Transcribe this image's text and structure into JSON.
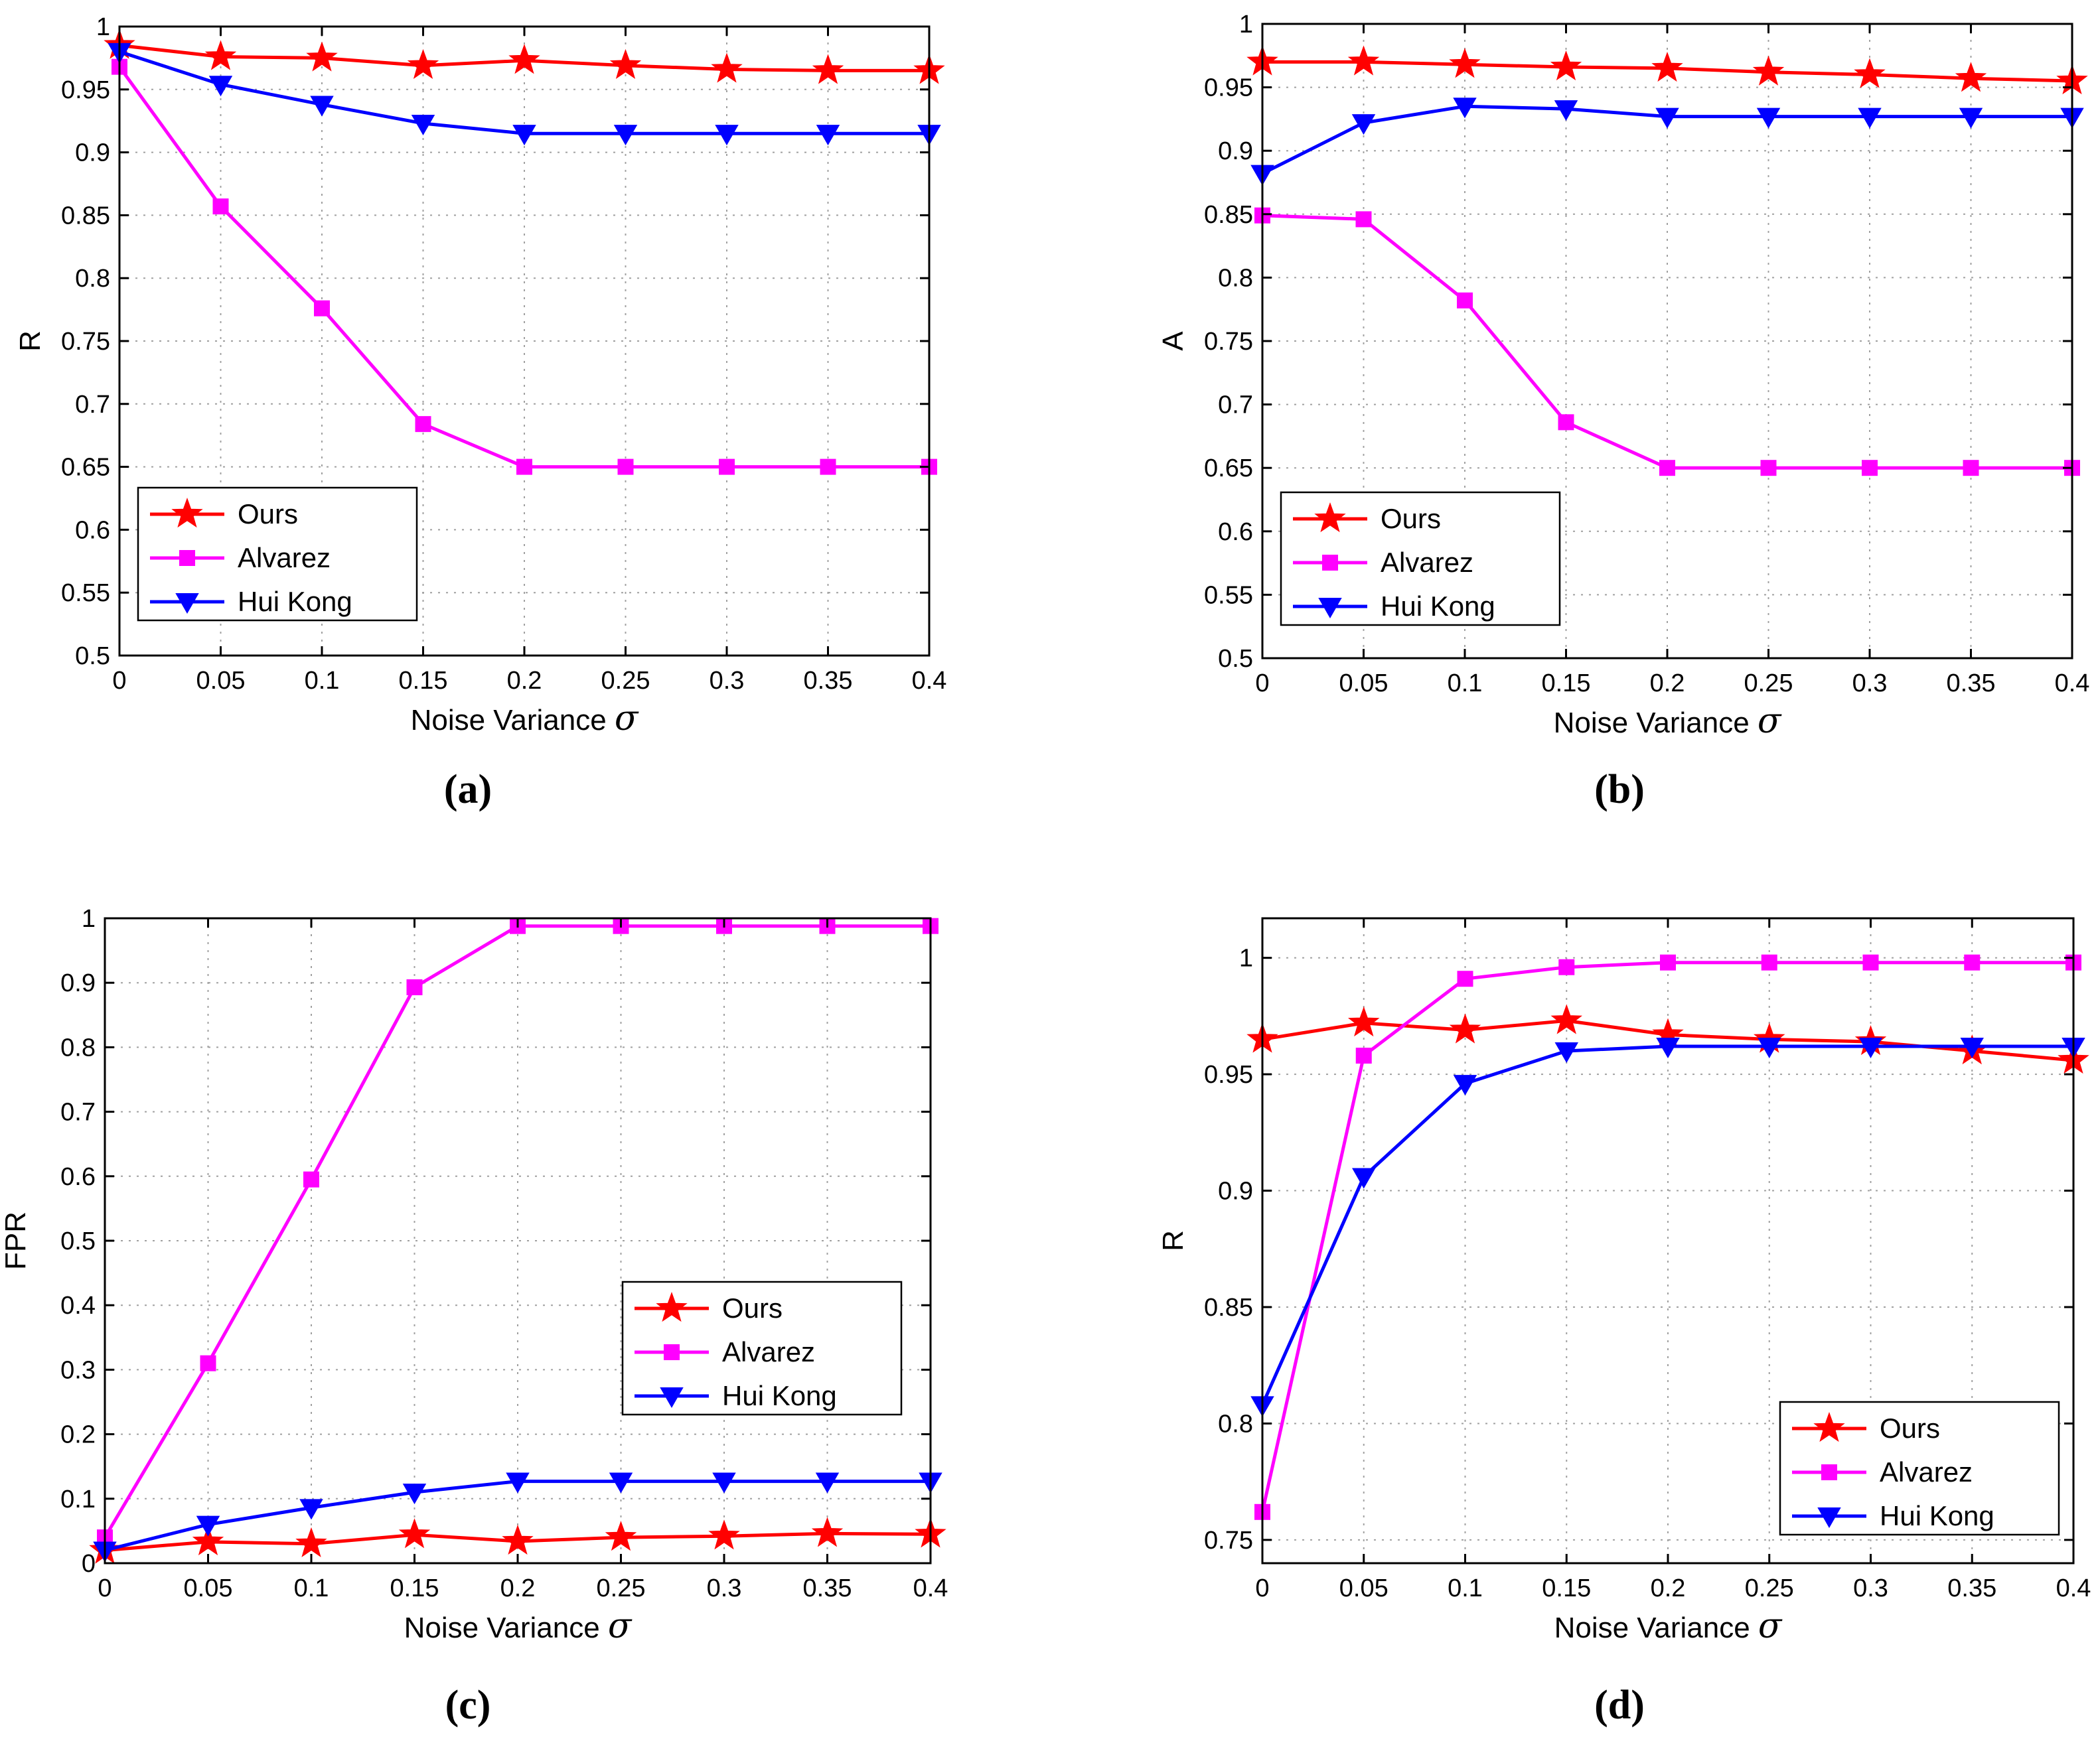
{
  "colors": {
    "Ours": "#ff0000",
    "Alvarez": "#ff00ff",
    "Hui Kong": "#0000ff"
  },
  "chart_data": [
    {
      "type": "line",
      "caption": "(a)",
      "xlabel": "Noise Variance",
      "xlabel_symbol": "σ",
      "ylabel": "R",
      "xlim": [
        0,
        0.4
      ],
      "ylim": [
        0.5,
        1
      ],
      "xticks": [
        0,
        0.05,
        0.1,
        0.15,
        0.2,
        0.25,
        0.3,
        0.35,
        0.4
      ],
      "yticks": [
        0.5,
        0.55,
        0.6,
        0.65,
        0.7,
        0.75,
        0.8,
        0.85,
        0.9,
        0.95,
        1
      ],
      "grid": true,
      "legend_position": "bottom-left",
      "x": [
        0,
        0.05,
        0.1,
        0.15,
        0.2,
        0.25,
        0.3,
        0.35,
        0.4
      ],
      "series": [
        {
          "name": "Ours",
          "marker": "star",
          "values": [
            0.985,
            0.976,
            0.975,
            0.969,
            0.973,
            0.969,
            0.966,
            0.965,
            0.965
          ]
        },
        {
          "name": "Alvarez",
          "marker": "square",
          "values": [
            0.968,
            0.857,
            0.776,
            0.684,
            0.65,
            0.65,
            0.65,
            0.65,
            0.65
          ]
        },
        {
          "name": "Hui Kong",
          "marker": "triangle-down",
          "values": [
            0.98,
            0.954,
            0.938,
            0.923,
            0.915,
            0.915,
            0.915,
            0.915,
            0.915
          ]
        }
      ]
    },
    {
      "type": "line",
      "caption": "(b)",
      "xlabel": "Noise Variance",
      "xlabel_symbol": "σ",
      "ylabel": "A",
      "xlim": [
        0,
        0.4
      ],
      "ylim": [
        0.5,
        1
      ],
      "xticks": [
        0,
        0.05,
        0.1,
        0.15,
        0.2,
        0.25,
        0.3,
        0.35,
        0.4
      ],
      "yticks": [
        0.5,
        0.55,
        0.6,
        0.65,
        0.7,
        0.75,
        0.8,
        0.85,
        0.9,
        0.95,
        1
      ],
      "grid": true,
      "legend_position": "bottom-left",
      "x": [
        0,
        0.05,
        0.1,
        0.15,
        0.2,
        0.25,
        0.3,
        0.35,
        0.4
      ],
      "series": [
        {
          "name": "Ours",
          "marker": "star",
          "values": [
            0.97,
            0.97,
            0.968,
            0.966,
            0.965,
            0.962,
            0.96,
            0.957,
            0.955
          ]
        },
        {
          "name": "Alvarez",
          "marker": "square",
          "values": [
            0.849,
            0.846,
            0.782,
            0.686,
            0.65,
            0.65,
            0.65,
            0.65,
            0.65
          ]
        },
        {
          "name": "Hui Kong",
          "marker": "triangle-down",
          "values": [
            0.882,
            0.922,
            0.935,
            0.933,
            0.927,
            0.927,
            0.927,
            0.927,
            0.927
          ]
        }
      ]
    },
    {
      "type": "line",
      "caption": "(c)",
      "xlabel": "Noise Variance",
      "xlabel_symbol": "σ",
      "ylabel": "FPR",
      "xlim": [
        0,
        0.4
      ],
      "ylim": [
        0,
        1
      ],
      "xticks": [
        0,
        0.05,
        0.1,
        0.15,
        0.2,
        0.25,
        0.3,
        0.35,
        0.4
      ],
      "yticks": [
        0,
        0.1,
        0.2,
        0.3,
        0.4,
        0.5,
        0.6,
        0.7,
        0.8,
        0.9,
        1
      ],
      "grid": true,
      "legend_position": "center-right",
      "x": [
        0,
        0.05,
        0.1,
        0.15,
        0.2,
        0.25,
        0.3,
        0.35,
        0.4
      ],
      "series": [
        {
          "name": "Ours",
          "marker": "star",
          "values": [
            0.02,
            0.033,
            0.03,
            0.044,
            0.034,
            0.04,
            0.042,
            0.046,
            0.045
          ]
        },
        {
          "name": "Alvarez",
          "marker": "square",
          "values": [
            0.04,
            0.31,
            0.595,
            0.893,
            0.988,
            0.988,
            0.988,
            0.988,
            0.988
          ]
        },
        {
          "name": "Hui Kong",
          "marker": "triangle-down",
          "values": [
            0.02,
            0.06,
            0.086,
            0.11,
            0.127,
            0.127,
            0.127,
            0.127,
            0.127
          ]
        }
      ]
    },
    {
      "type": "line",
      "caption": "(d)",
      "xlabel": "Noise Variance",
      "xlabel_symbol": "σ",
      "ylabel": "R",
      "xlim": [
        0,
        0.4
      ],
      "ylim": [
        0.74,
        1.017
      ],
      "xticks": [
        0,
        0.05,
        0.1,
        0.15,
        0.2,
        0.25,
        0.3,
        0.35,
        0.4
      ],
      "yticks": [
        0.75,
        0.8,
        0.85,
        0.9,
        0.95,
        1
      ],
      "grid": true,
      "legend_position": "bottom-right",
      "x": [
        0,
        0.05,
        0.1,
        0.15,
        0.2,
        0.25,
        0.3,
        0.35,
        0.4
      ],
      "series": [
        {
          "name": "Ours",
          "marker": "star",
          "values": [
            0.965,
            0.972,
            0.969,
            0.973,
            0.967,
            0.965,
            0.964,
            0.96,
            0.956
          ]
        },
        {
          "name": "Alvarez",
          "marker": "square",
          "values": [
            0.762,
            0.958,
            0.991,
            0.996,
            0.998,
            0.998,
            0.998,
            0.998,
            0.998
          ]
        },
        {
          "name": "Hui Kong",
          "marker": "triangle-down",
          "values": [
            0.808,
            0.906,
            0.946,
            0.96,
            0.962,
            0.962,
            0.962,
            0.962,
            0.962
          ]
        }
      ]
    }
  ]
}
